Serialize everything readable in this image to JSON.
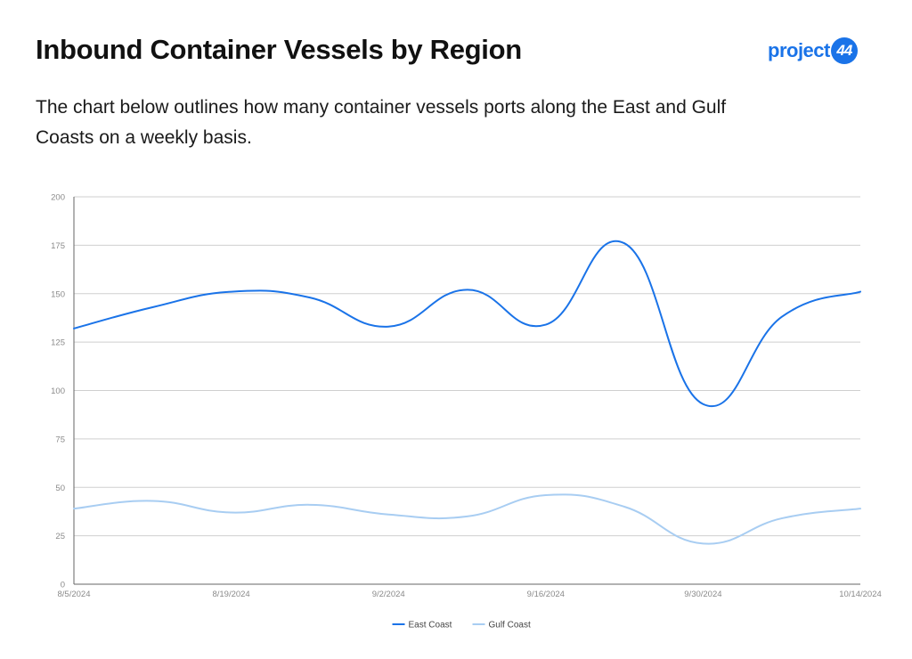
{
  "header": {
    "title": "Inbound Container Vessels by Region",
    "subtitle": "The chart below outlines how many container vessels ports along the East and Gulf Coasts on a weekly basis.",
    "logo": {
      "text": "project",
      "badge": "44",
      "color": "#1a73e8"
    }
  },
  "chart_data": {
    "type": "line",
    "title": "",
    "xlabel": "",
    "ylabel": "",
    "x": [
      "8/5/2024",
      "8/12/2024",
      "8/19/2024",
      "8/26/2024",
      "9/2/2024",
      "9/9/2024",
      "9/16/2024",
      "9/23/2024",
      "9/30/2024",
      "10/7/2024",
      "10/14/2024"
    ],
    "x_tick_labels": [
      "8/5/2024",
      "8/19/2024",
      "9/2/2024",
      "9/16/2024",
      "9/30/2024",
      "10/14/2024"
    ],
    "ylim": [
      0,
      200
    ],
    "y_ticks": [
      "0",
      "25",
      "50",
      "75",
      "100",
      "125",
      "150",
      "175",
      "200"
    ],
    "grid": true,
    "legend_position": "bottom",
    "series": [
      {
        "name": "East Coast",
        "color": "#1a73e8",
        "values": [
          132,
          143,
          151,
          148,
          133,
          152,
          134,
          176,
          93,
          138,
          151
        ]
      },
      {
        "name": "Gulf Coast",
        "color": "#a8cdf2",
        "values": [
          39,
          43,
          37,
          41,
          36,
          35,
          46,
          40,
          21,
          34,
          39
        ]
      }
    ]
  }
}
